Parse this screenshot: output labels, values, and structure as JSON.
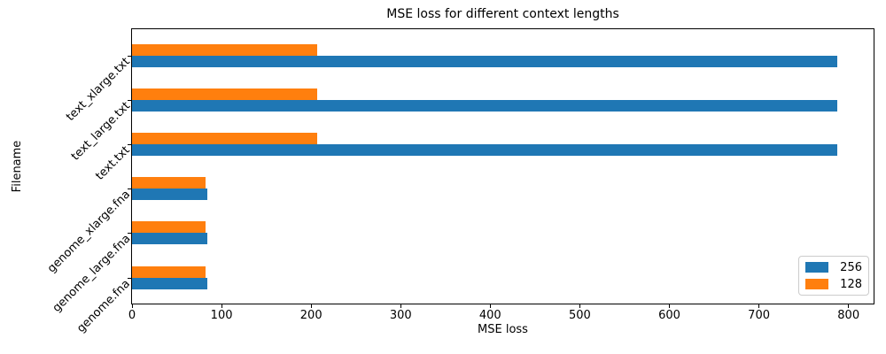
{
  "chart_data": {
    "type": "bar",
    "orientation": "horizontal",
    "title": "MSE loss for different context lengths",
    "xlabel": "MSE loss",
    "ylabel": "Filename",
    "categories_order": "top-to-bottom",
    "categories": [
      "text_xlarge.txt",
      "text_large.txt",
      "text.txt",
      "genome_xlarge.fna",
      "genome_large.fna",
      "genome.fna"
    ],
    "series": [
      {
        "name": "256",
        "color": "#1f77b4",
        "values": [
          787,
          787,
          787,
          84,
          84,
          84
        ]
      },
      {
        "name": "128",
        "color": "#ff7f0e",
        "values": [
          207,
          207,
          207,
          82,
          82,
          82
        ]
      }
    ],
    "xlim": [
      0,
      828
    ],
    "xticks": [
      0,
      100,
      200,
      300,
      400,
      500,
      600,
      700,
      800
    ],
    "grid": "off",
    "legend_position": "lower right",
    "background_color": "#ffffff",
    "spine_color": "#000000"
  }
}
